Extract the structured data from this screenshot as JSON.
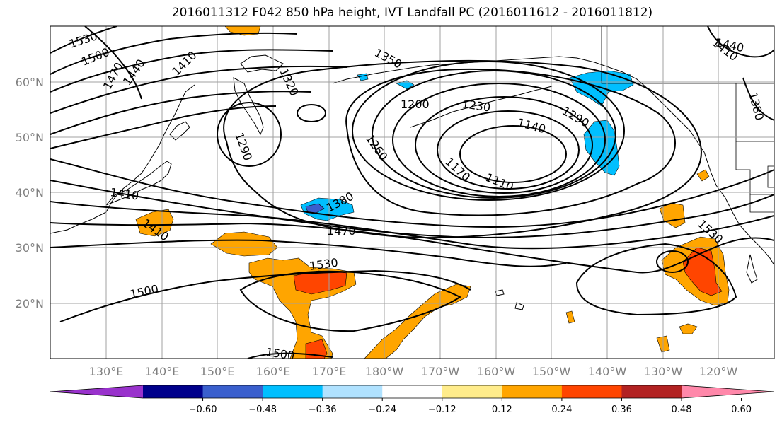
{
  "title": "2016011312 F042 850 hPa height, IVT Landfall PC (2016011612 - 2016011812)",
  "lat_labels": [
    "60°N",
    "50°N",
    "40°N",
    "30°N",
    "20°N"
  ],
  "lon_labels": [
    "130°E",
    "140°E",
    "150°E",
    "160°E",
    "170°E",
    "180°W",
    "170°W",
    "160°W",
    "150°W",
    "140°W",
    "130°W",
    "120°W"
  ],
  "colorbar": {
    "ticks": [
      "−0.60",
      "−0.48",
      "−0.36",
      "−0.24",
      "−0.12",
      "0.12",
      "0.24",
      "0.36",
      "0.48",
      "0.60"
    ],
    "colors": [
      "#9932cc",
      "#00008b",
      "#3a5fcd",
      "#00bfff",
      "#b0e2ff",
      "#ffffff",
      "#ffec8b",
      "#ffa500",
      "#ff4500",
      "#b22222",
      "#ff88aa"
    ]
  },
  "contour_labels": [
    "1530",
    "1500",
    "1470",
    "1440",
    "1410",
    "1350",
    "1320",
    "1290",
    "1200",
    "1230",
    "1140",
    "1290",
    "1260",
    "1170",
    "1110",
    "1410",
    "1380",
    "1410",
    "1470",
    "1530",
    "1500",
    "1500",
    "1530",
    "1410",
    "1440",
    "1380",
    "1410"
  ]
}
